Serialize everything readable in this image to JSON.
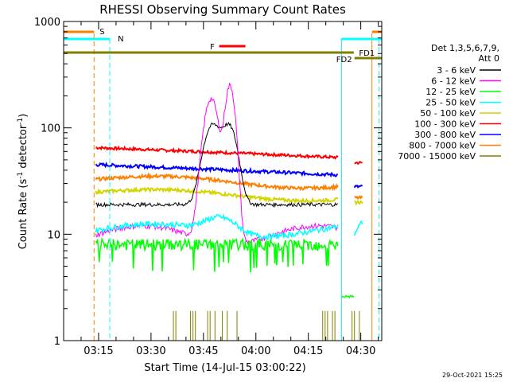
{
  "chart_data": {
    "type": "line",
    "title": "RHESSI Observing Summary Count Rates",
    "xlabel": "Start Time (14-Jul-15 03:00:22)",
    "ylabel_main": "Count Rate (s",
    "ylabel_exp1": "-1",
    "ylabel_mid": " detector",
    "ylabel_exp2": "-1",
    "ylabel_end": ")",
    "y_scale": "log",
    "ylim": [
      1,
      1000
    ],
    "xlim": [
      "03:05",
      "04:36"
    ],
    "x_ticks": [
      "03:15",
      "03:30",
      "03:45",
      "04:00",
      "04:15",
      "04:30"
    ],
    "y_ticks": [
      "1",
      "10",
      "100",
      "1000"
    ],
    "grid": false,
    "legend_position": "right",
    "detector_label": "Det 1,3,5,6,7,9,",
    "attenuator_label": "Att 0",
    "timestamp": "29-Oct-2021 15:25",
    "series": [
      {
        "name": "3 - 6 keV",
        "color": "#000000"
      },
      {
        "name": "6 - 12 keV",
        "color": "#ff00ff"
      },
      {
        "name": "12 - 25 keV",
        "color": "#00ff00"
      },
      {
        "name": "25 - 50 keV",
        "color": "#00ffff"
      },
      {
        "name": "50 - 100 keV",
        "color": "#d4d400"
      },
      {
        "name": "100 - 300 keV",
        "color": "#ff0000"
      },
      {
        "name": "300 - 800 keV",
        "color": "#0000ff"
      },
      {
        "name": "800 - 7000 keV",
        "color": "#ff8000"
      },
      {
        "name": "7000 - 15000 keV",
        "color": "#808000"
      }
    ],
    "flags": [
      {
        "label": "S",
        "color": "#ff8000"
      },
      {
        "label": "N",
        "color": "#00ffff"
      },
      {
        "label": "F",
        "color": "#ff0000"
      },
      {
        "label": "FD1",
        "color": "#808000"
      },
      {
        "label": "FD2",
        "color": "#808000"
      }
    ]
  }
}
